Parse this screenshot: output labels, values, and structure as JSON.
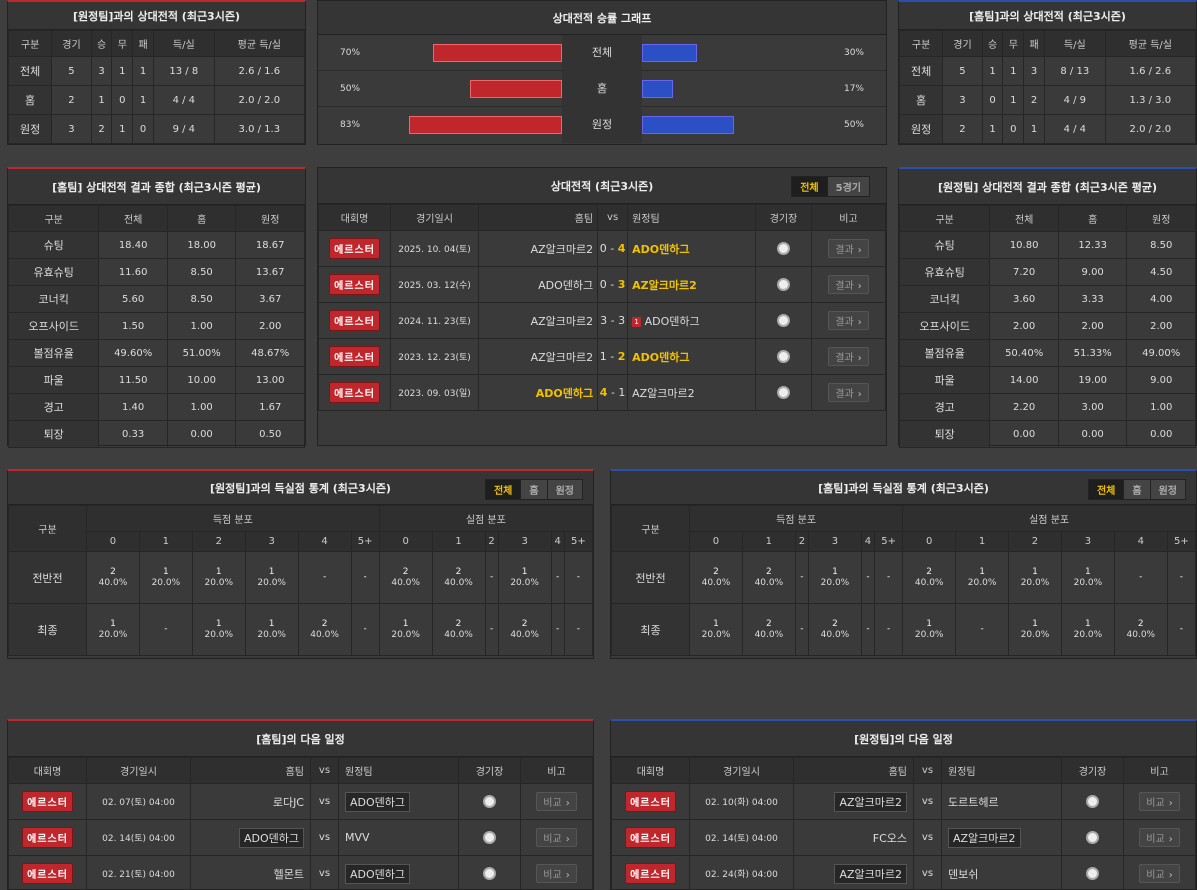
{
  "away_h2h": {
    "title": "[원정팀]과의 상대전적 (최근3시즌)",
    "headers": [
      "구분",
      "경기",
      "승",
      "무",
      "패",
      "득/실",
      "평균 득/실"
    ],
    "rows": [
      [
        "전체",
        "5",
        "3",
        "1",
        "1",
        "13 / 8",
        "2.6 / 1.6"
      ],
      [
        "홈",
        "2",
        "1",
        "0",
        "1",
        "4 / 4",
        "2.0 / 2.0"
      ],
      [
        "원정",
        "3",
        "2",
        "1",
        "0",
        "9 / 4",
        "3.0 / 1.3"
      ]
    ]
  },
  "graph": {
    "title": "상대전적 승률 그래프",
    "rows": [
      {
        "label": "전체",
        "left": "70%",
        "right": "30%",
        "lv": 70,
        "rv": 30
      },
      {
        "label": "홈",
        "left": "50%",
        "right": "17%",
        "lv": 50,
        "rv": 17
      },
      {
        "label": "원정",
        "left": "83%",
        "right": "50%",
        "lv": 83,
        "rv": 50
      }
    ],
    "colors": {
      "home": "#c0272d",
      "away": "#2b4fc4"
    }
  },
  "home_h2h": {
    "title": "[홈팀]과의 상대전적 (최근3시즌)",
    "headers": [
      "구분",
      "경기",
      "승",
      "무",
      "패",
      "득/실",
      "평균 득/실"
    ],
    "rows": [
      [
        "전체",
        "5",
        "1",
        "1",
        "3",
        "8 / 13",
        "1.6 / 2.6"
      ],
      [
        "홈",
        "3",
        "0",
        "1",
        "2",
        "4 / 9",
        "1.3 / 3.0"
      ],
      [
        "원정",
        "2",
        "1",
        "0",
        "1",
        "4 / 4",
        "2.0 / 2.0"
      ]
    ]
  },
  "home_summary": {
    "title": "[홈팀] 상대전적 결과 종합 (최근3시즌 평균)",
    "headers": [
      "구분",
      "전체",
      "홈",
      "원정"
    ],
    "rows": [
      [
        "슈팅",
        "18.40",
        "18.00",
        "18.67"
      ],
      [
        "유효슈팅",
        "11.60",
        "8.50",
        "13.67"
      ],
      [
        "코너킥",
        "5.60",
        "8.50",
        "3.67"
      ],
      [
        "오프사이드",
        "1.50",
        "1.00",
        "2.00"
      ],
      [
        "볼점유율",
        "49.60%",
        "51.00%",
        "48.67%"
      ],
      [
        "파울",
        "11.50",
        "10.00",
        "13.00"
      ],
      [
        "경고",
        "1.40",
        "1.00",
        "1.67"
      ],
      [
        "퇴장",
        "0.33",
        "0.00",
        "0.50"
      ]
    ]
  },
  "away_summary": {
    "title": "[원정팀] 상대전적 결과 종합 (최근3시즌 평균)",
    "headers": [
      "구분",
      "전체",
      "홈",
      "원정"
    ],
    "rows": [
      [
        "슈팅",
        "10.80",
        "12.33",
        "8.50"
      ],
      [
        "유효슈팅",
        "7.20",
        "9.00",
        "4.50"
      ],
      [
        "코너킥",
        "3.60",
        "3.33",
        "4.00"
      ],
      [
        "오프사이드",
        "2.00",
        "2.00",
        "2.00"
      ],
      [
        "볼점유율",
        "50.40%",
        "51.33%",
        "49.00%"
      ],
      [
        "파울",
        "14.00",
        "19.00",
        "9.00"
      ],
      [
        "경고",
        "2.20",
        "3.00",
        "1.00"
      ],
      [
        "퇴장",
        "0.00",
        "0.00",
        "0.00"
      ]
    ]
  },
  "matches": {
    "title": "상대전적 (최근3시즌)",
    "tabs": [
      "전체",
      "5경기"
    ],
    "headers": {
      "league": "대회명",
      "date": "경기일시",
      "home": "홈팀",
      "vs": "vs",
      "away": "원정팀",
      "venue": "경기장",
      "note": "비고"
    },
    "result_label": "결과",
    "rows": [
      {
        "league": "에르스터",
        "date": "2025. 10. 04(토)",
        "home": "AZ알크마르2",
        "hs": "0",
        "as": "4",
        "away": "ADO덴하그",
        "win": "away",
        "card": ""
      },
      {
        "league": "에르스터",
        "date": "2025. 03. 12(수)",
        "home": "ADO덴하그",
        "hs": "0",
        "as": "3",
        "away": "AZ알크마르2",
        "win": "away",
        "card": ""
      },
      {
        "league": "에르스터",
        "date": "2024. 11. 23(토)",
        "home": "AZ알크마르2",
        "hs": "3",
        "as": "3",
        "away": "ADO덴하그",
        "win": "draw",
        "card": "1"
      },
      {
        "league": "에르스터",
        "date": "2023. 12. 23(토)",
        "home": "AZ알크마르2",
        "hs": "1",
        "as": "2",
        "away": "ADO덴하그",
        "win": "away",
        "card": ""
      },
      {
        "league": "에르스터",
        "date": "2023. 09. 03(일)",
        "home": "ADO덴하그",
        "hs": "4",
        "as": "1",
        "away": "AZ알크마르2",
        "win": "home",
        "card": ""
      }
    ]
  },
  "goal_left": {
    "title": "[원정팀]과의 득실점 통계 (최근3시즌)",
    "tabs": [
      "전체",
      "홈",
      "원정"
    ],
    "group_label": "구분",
    "scored": "득점 분포",
    "conceded": "실점 분포",
    "cols": [
      "0",
      "1",
      "2",
      "3",
      "4",
      "5+"
    ],
    "rows": [
      {
        "label": "전반전",
        "s": [
          [
            "2",
            "40.0%"
          ],
          [
            "1",
            "20.0%"
          ],
          [
            "1",
            "20.0%"
          ],
          [
            "1",
            "20.0%"
          ],
          [
            "-",
            ""
          ],
          [
            "-",
            ""
          ]
        ],
        "c": [
          [
            "2",
            "40.0%"
          ],
          [
            "2",
            "40.0%"
          ],
          [
            "-",
            ""
          ],
          [
            "1",
            "20.0%"
          ],
          [
            "-",
            ""
          ],
          [
            "-",
            ""
          ]
        ]
      },
      {
        "label": "최종",
        "s": [
          [
            "1",
            "20.0%"
          ],
          [
            "-",
            ""
          ],
          [
            "1",
            "20.0%"
          ],
          [
            "1",
            "20.0%"
          ],
          [
            "2",
            "40.0%"
          ],
          [
            "-",
            ""
          ]
        ],
        "c": [
          [
            "1",
            "20.0%"
          ],
          [
            "2",
            "40.0%"
          ],
          [
            "-",
            ""
          ],
          [
            "2",
            "40.0%"
          ],
          [
            "-",
            ""
          ],
          [
            "-",
            ""
          ]
        ]
      }
    ]
  },
  "goal_right": {
    "title": "[홈팀]과의 득실점 통계 (최근3시즌)",
    "tabs": [
      "전체",
      "홈",
      "원정"
    ],
    "group_label": "구분",
    "scored": "득점 분포",
    "conceded": "실점 분포",
    "cols": [
      "0",
      "1",
      "2",
      "3",
      "4",
      "5+"
    ],
    "rows": [
      {
        "label": "전반전",
        "s": [
          [
            "2",
            "40.0%"
          ],
          [
            "2",
            "40.0%"
          ],
          [
            "-",
            ""
          ],
          [
            "1",
            "20.0%"
          ],
          [
            "-",
            ""
          ],
          [
            "-",
            ""
          ]
        ],
        "c": [
          [
            "2",
            "40.0%"
          ],
          [
            "1",
            "20.0%"
          ],
          [
            "1",
            "20.0%"
          ],
          [
            "1",
            "20.0%"
          ],
          [
            "-",
            ""
          ],
          [
            "-",
            ""
          ]
        ]
      },
      {
        "label": "최종",
        "s": [
          [
            "1",
            "20.0%"
          ],
          [
            "2",
            "40.0%"
          ],
          [
            "-",
            ""
          ],
          [
            "2",
            "40.0%"
          ],
          [
            "-",
            ""
          ],
          [
            "-",
            ""
          ]
        ],
        "c": [
          [
            "1",
            "20.0%"
          ],
          [
            "-",
            ""
          ],
          [
            "1",
            "20.0%"
          ],
          [
            "1",
            "20.0%"
          ],
          [
            "2",
            "40.0%"
          ],
          [
            "-",
            ""
          ]
        ]
      }
    ]
  },
  "next_home": {
    "title": "[홈팀]의 다음 일정",
    "headers": {
      "league": "대회명",
      "date": "경기일시",
      "home": "홈팀",
      "vs": "vs",
      "away": "원정팀",
      "venue": "경기장",
      "note": "비고"
    },
    "note_label": "비교",
    "rows": [
      {
        "league": "에르스터",
        "date": "02. 07(토) 04:00",
        "home": "로다JC",
        "away": "ADO덴하그",
        "box": "away"
      },
      {
        "league": "에르스터",
        "date": "02. 14(토) 04:00",
        "home": "ADO덴하그",
        "away": "MVV",
        "box": "home"
      },
      {
        "league": "에르스터",
        "date": "02. 21(토) 04:00",
        "home": "헬몬트",
        "away": "ADO덴하그",
        "box": "away"
      }
    ]
  },
  "next_away": {
    "title": "[원정팀]의 다음 일정",
    "headers": {
      "league": "대회명",
      "date": "경기일시",
      "home": "홈팀",
      "vs": "vs",
      "away": "원정팀",
      "venue": "경기장",
      "note": "비고"
    },
    "note_label": "비교",
    "rows": [
      {
        "league": "에르스터",
        "date": "02. 10(화) 04:00",
        "home": "AZ알크마르2",
        "away": "도르트헤르",
        "box": "home"
      },
      {
        "league": "에르스터",
        "date": "02. 14(토) 04:00",
        "home": "FC오스",
        "away": "AZ알크마르2",
        "box": "away"
      },
      {
        "league": "에르스터",
        "date": "02. 24(화) 04:00",
        "home": "AZ알크마르2",
        "away": "덴보쉬",
        "box": "home"
      }
    ]
  }
}
